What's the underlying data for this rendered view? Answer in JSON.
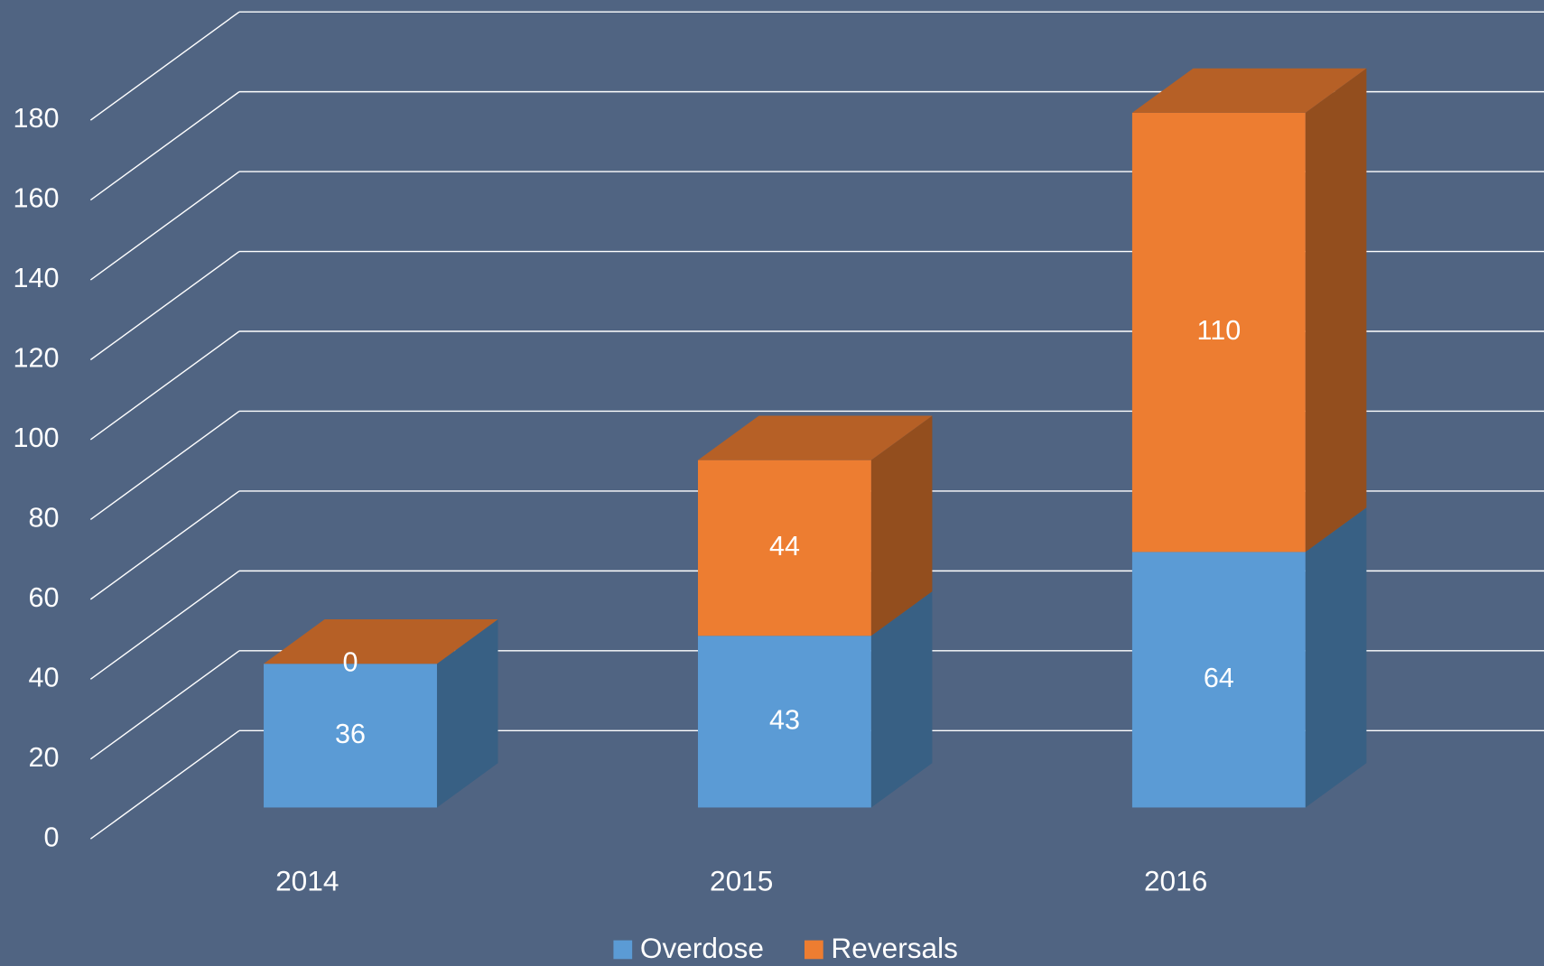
{
  "chart_data": {
    "type": "bar3d_stacked",
    "categories": [
      "2014",
      "2015",
      "2016"
    ],
    "series": [
      {
        "name": "Overdose",
        "color": "#5b9bd5",
        "values": [
          36,
          43,
          64
        ]
      },
      {
        "name": "Reversals",
        "color": "#ed7d31",
        "values": [
          0,
          44,
          110
        ]
      }
    ],
    "ylim": [
      0,
      180
    ],
    "yticks": [
      0,
      20,
      40,
      60,
      80,
      100,
      120,
      140,
      160,
      180
    ],
    "grid": true,
    "legend": "bottom"
  }
}
